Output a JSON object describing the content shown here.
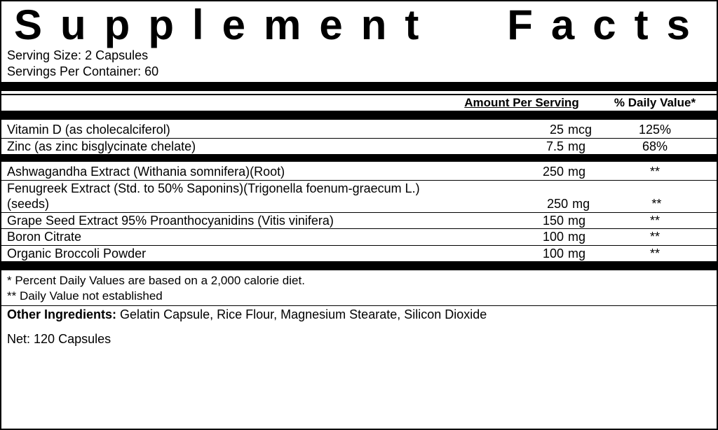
{
  "title": "Supplement Facts",
  "serving_size_label": "Serving Size:",
  "serving_size_value": "2 Capsules",
  "servings_per_label": "Servings Per Container:",
  "servings_per_value": "60",
  "header_amount": "Amount Per Serving",
  "header_dv": "% Daily Value*",
  "section1": [
    {
      "name": "Vitamin D (as cholecalciferol)",
      "amount": "25",
      "unit": "mcg",
      "dv": "125%"
    },
    {
      "name": "Zinc (as zinc bisglycinate chelate)",
      "amount": "7.5",
      "unit": "mg",
      "dv": "68%"
    }
  ],
  "section2": [
    {
      "name": "Ashwagandha Extract (Withania somnifera)(Root)",
      "amount": "250",
      "unit": "mg",
      "dv": "**"
    },
    {
      "name": "Fenugreek Extract (Std. to 50% Saponins)(Trigonella foenum-graecum L.)(seeds)",
      "amount": "250",
      "unit": "mg",
      "dv": "**"
    },
    {
      "name": "Grape Seed Extract 95% Proanthocyanidins (Vitis vinifera)",
      "amount": "150",
      "unit": "mg",
      "dv": "**"
    },
    {
      "name": "Boron Citrate",
      "amount": "100",
      "unit": "mg",
      "dv": "**"
    },
    {
      "name": "Organic Broccoli Powder",
      "amount": "100",
      "unit": "mg",
      "dv": "**"
    }
  ],
  "footnote1": "* Percent Daily Values are based on a 2,000 calorie diet.",
  "footnote2": "** Daily Value not established",
  "other_label": "Other Ingredients:",
  "other_value": "Gelatin Capsule, Rice Flour, Magnesium Stearate, Silicon Dioxide",
  "net_label": "Net:",
  "net_value": "120 Capsules"
}
